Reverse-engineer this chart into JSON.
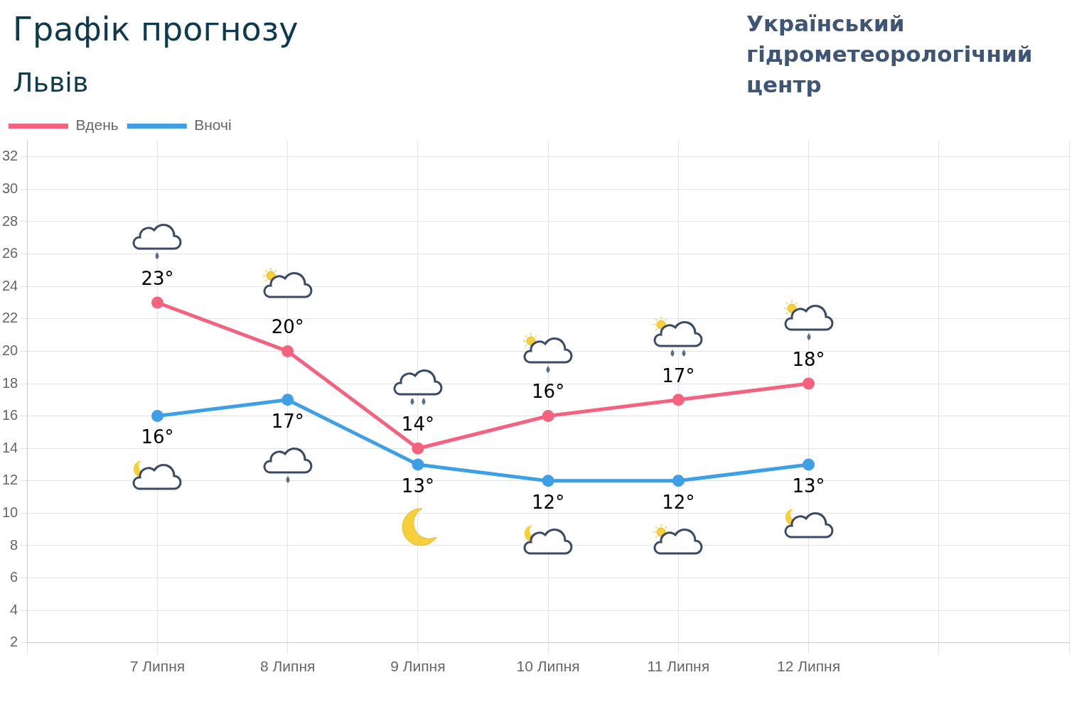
{
  "chart_data": {
    "type": "line",
    "title": "Графік прогнозу",
    "subtitle": "Львів",
    "annotations": [
      "Український гідрометеорологічний центр"
    ],
    "categories": [
      null,
      "7 Липня",
      "8 Липня",
      "9 Липня",
      "10 Липня",
      "11 Липня",
      "12 Липня",
      null,
      null
    ],
    "series": [
      {
        "name": "Вдень",
        "color": "#f5627f",
        "values": [
          null,
          23,
          20,
          14,
          16,
          17,
          18,
          null,
          null
        ],
        "value_labels": [
          null,
          "23°",
          "20°",
          "14°",
          "16°",
          "17°",
          "18°",
          null,
          null
        ]
      },
      {
        "name": "Вночі",
        "color": "#3d9fe6",
        "values": [
          null,
          16,
          17,
          13,
          12,
          12,
          13,
          null,
          null
        ],
        "value_labels": [
          null,
          "16°",
          "17°",
          "13°",
          "12°",
          "12°",
          "13°",
          null,
          null
        ]
      }
    ],
    "ylim": [
      2,
      33
    ],
    "yticks": [
      2,
      4,
      6,
      8,
      10,
      12,
      14,
      16,
      18,
      20,
      22,
      24,
      26,
      28,
      30,
      32
    ],
    "grid": true,
    "legend": "top left",
    "marker": "circle",
    "line_style": "solid"
  }
}
